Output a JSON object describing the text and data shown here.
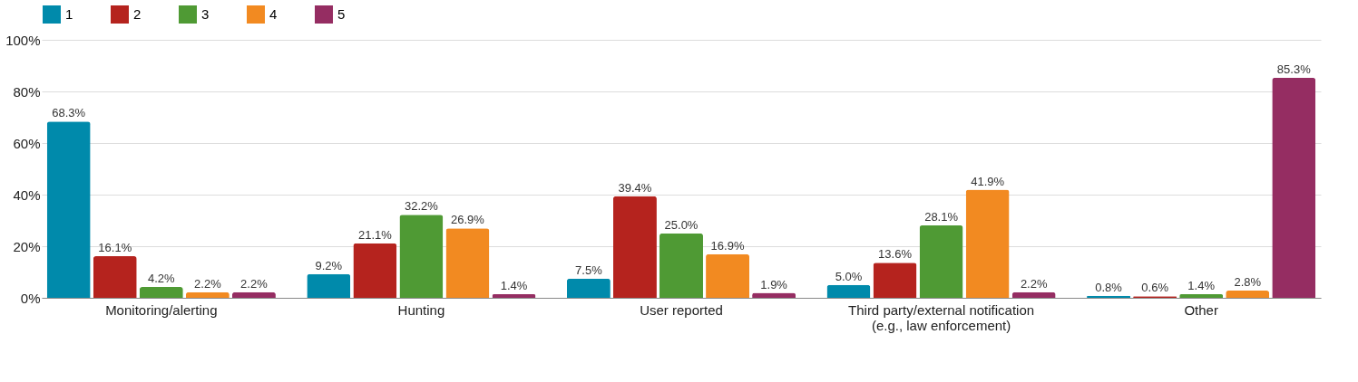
{
  "chart_data": {
    "type": "bar",
    "categories": [
      "Monitoring/alerting",
      "Hunting",
      "User reported",
      "Third party/external notification\n(e.g., law enforcement)",
      "Other"
    ],
    "series": [
      {
        "name": "1",
        "color": "#008aab",
        "values": [
          68.3,
          9.2,
          7.5,
          5.0,
          0.8
        ],
        "value_labels": [
          "68.3%",
          "9.2%",
          "7.5%",
          "5.0%",
          "0.8%"
        ]
      },
      {
        "name": "2",
        "color": "#b5231e",
        "values": [
          16.1,
          21.1,
          39.4,
          13.6,
          0.6
        ],
        "value_labels": [
          "16.1%",
          "21.1%",
          "39.4%",
          "13.6%",
          "0.6%"
        ]
      },
      {
        "name": "3",
        "color": "#4f9a34",
        "values": [
          4.2,
          32.2,
          25.0,
          28.1,
          1.4
        ],
        "value_labels": [
          "4.2%",
          "32.2%",
          "25.0%",
          "28.1%",
          "1.4%"
        ]
      },
      {
        "name": "4",
        "color": "#f28a21",
        "values": [
          2.2,
          26.9,
          16.9,
          41.9,
          2.8
        ],
        "value_labels": [
          "2.2%",
          "26.9%",
          "16.9%",
          "41.9%",
          "2.8%"
        ]
      },
      {
        "name": "5",
        "color": "#952d62",
        "values": [
          2.2,
          1.4,
          1.9,
          2.2,
          85.3
        ],
        "value_labels": [
          "2.2%",
          "1.4%",
          "1.9%",
          "2.2%",
          "85.3%"
        ]
      }
    ],
    "ylim": [
      0,
      100
    ],
    "yticks": [
      {
        "value": 0,
        "label": "0%"
      },
      {
        "value": 20,
        "label": "20%"
      },
      {
        "value": 40,
        "label": "40%"
      },
      {
        "value": 60,
        "label": "60%"
      },
      {
        "value": 80,
        "label": "80%"
      },
      {
        "value": 100,
        "label": "100%"
      }
    ],
    "grid": "y",
    "legend": "top"
  }
}
